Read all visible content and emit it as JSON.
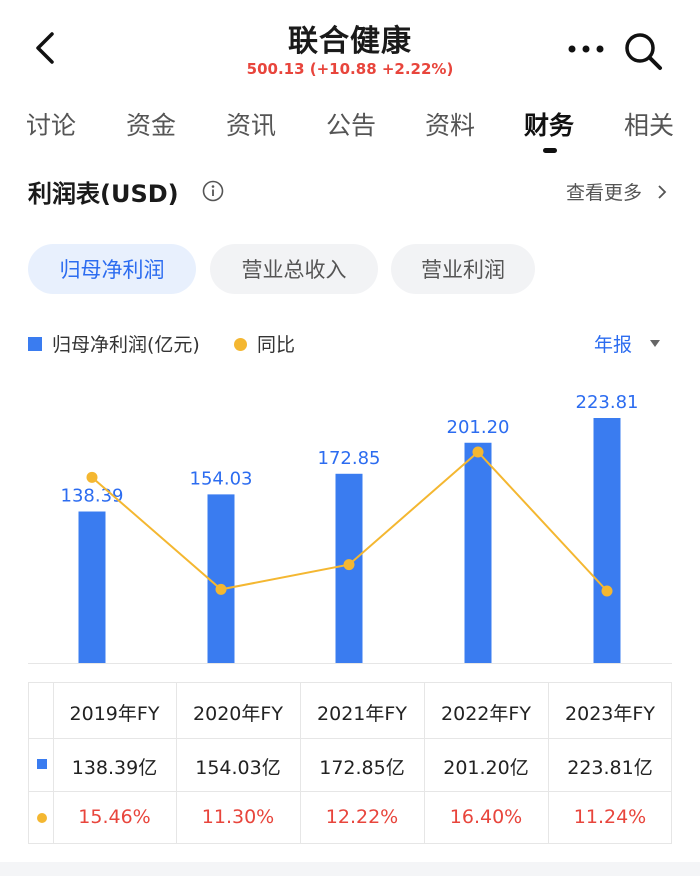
{
  "header": {
    "title": "联合健康",
    "quote": "500.13 (+10.88 +2.22%)"
  },
  "tabs": [
    {
      "label": "讨论",
      "active": false
    },
    {
      "label": "资金",
      "active": false
    },
    {
      "label": "资讯",
      "active": false
    },
    {
      "label": "公告",
      "active": false
    },
    {
      "label": "资料",
      "active": false
    },
    {
      "label": "财务",
      "active": true
    },
    {
      "label": "相关",
      "active": false
    }
  ],
  "section": {
    "title": "利润表(USD)",
    "view_more": "查看更多"
  },
  "pills": [
    {
      "label": "归母净利润",
      "active": true
    },
    {
      "label": "营业总收入",
      "active": false
    },
    {
      "label": "营业利润",
      "active": false
    }
  ],
  "legend": {
    "series1": "归母净利润(亿元)",
    "series2": "同比",
    "period": "年报"
  },
  "colors": {
    "bar": "#3a7cf0",
    "line": "#f4b731",
    "positive": "#e8453c",
    "accent": "#2c6cf0"
  },
  "chart_data": {
    "type": "bar",
    "categories": [
      "2019年FY",
      "2020年FY",
      "2021年FY",
      "2022年FY",
      "2023年FY"
    ],
    "series": [
      {
        "name": "归母净利润(亿元)",
        "type": "bar",
        "values": [
          138.39,
          154.03,
          172.85,
          201.2,
          223.81
        ]
      },
      {
        "name": "同比",
        "type": "line",
        "values": [
          15.46,
          11.3,
          12.22,
          16.4,
          11.24
        ]
      }
    ]
  },
  "table": {
    "headers": [
      "2019年FY",
      "2020年FY",
      "2021年FY",
      "2022年FY",
      "2023年FY"
    ],
    "profit_row": [
      "138.39亿",
      "154.03亿",
      "172.85亿",
      "201.20亿",
      "223.81亿"
    ],
    "yoy_row": [
      "15.46%",
      "11.30%",
      "12.22%",
      "16.40%",
      "11.24%"
    ]
  }
}
